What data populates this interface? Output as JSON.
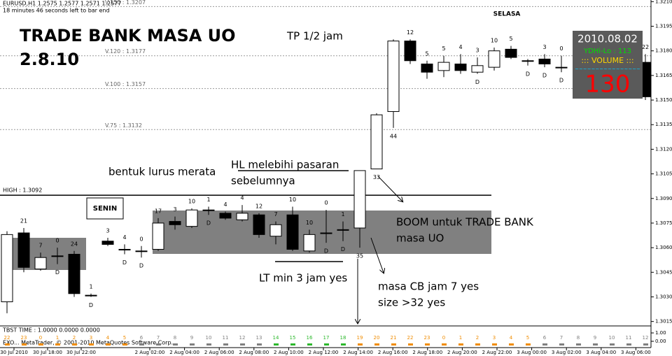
{
  "header": {
    "symbol": "EURUSD,H1  1.2575 1.2577 1.2571 1.2577",
    "timer": "18 minutes 46 seconds left to bar end"
  },
  "chart_data": {
    "type": "candlestick",
    "open": [
      1.3027,
      1.3069,
      1.3047,
      1.3055,
      1.3056,
      1.3031,
      1.3064,
      1.3059,
      1.3058,
      1.3059,
      1.3076,
      1.3073,
      1.3083,
      1.3081,
      1.3077,
      1.308,
      1.3067,
      1.308,
      1.3058,
      1.3069,
      1.3071,
      1.3072,
      1.3108,
      1.3143,
      1.3186,
      1.3172,
      1.3168,
      1.3172,
      1.3167,
      1.317,
      1.3181,
      1.3174,
      1.3175,
      1.317,
      null,
      null,
      null,
      null,
      1.3173
    ],
    "high": [
      1.307,
      1.3072,
      1.3057,
      1.306,
      1.3058,
      1.3032,
      1.3066,
      1.3062,
      1.3061,
      1.3078,
      1.3079,
      1.3084,
      1.3085,
      1.3082,
      1.3086,
      1.3081,
      1.3076,
      1.3085,
      1.3071,
      1.3083,
      1.3076,
      1.3107,
      1.3142,
      1.3187,
      1.3187,
      1.3174,
      1.3177,
      1.3178,
      1.3176,
      1.3182,
      1.3183,
      1.3175,
      1.3178,
      1.3177,
      null,
      null,
      null,
      null,
      1.3178
    ],
    "low": [
      1.302,
      1.3045,
      1.3046,
      1.305,
      1.303,
      1.303,
      1.3061,
      1.3056,
      1.3054,
      1.3058,
      1.3071,
      1.3072,
      1.308,
      1.3077,
      1.3076,
      1.3066,
      1.3062,
      1.3058,
      1.3057,
      1.3063,
      1.3064,
      1.306,
      1.3108,
      1.3133,
      1.3172,
      1.3163,
      1.3164,
      1.3166,
      1.3166,
      1.3168,
      1.3175,
      1.3171,
      1.317,
      1.3167,
      null,
      null,
      null,
      null,
      1.315
    ],
    "close": [
      1.3068,
      1.3048,
      1.3054,
      1.3055,
      1.3032,
      1.3031,
      1.3062,
      1.3059,
      1.3058,
      1.3075,
      1.3074,
      1.3083,
      1.3083,
      1.3078,
      1.3081,
      1.3068,
      1.3074,
      1.3059,
      1.3068,
      1.3069,
      1.3071,
      1.3107,
      1.3141,
      1.3186,
      1.3174,
      1.3167,
      1.3173,
      1.3168,
      1.3171,
      1.318,
      1.3176,
      1.3174,
      1.3172,
      1.317,
      null,
      null,
      null,
      null,
      1.3152
    ],
    "counts": [
      null,
      21,
      7,
      0,
      24,
      1,
      3,
      4,
      0,
      17,
      3,
      10,
      1,
      4,
      4,
      12,
      7,
      10,
      10,
      0,
      1,
      null,
      null,
      null,
      12,
      5,
      5,
      4,
      3,
      10,
      5,
      null,
      3,
      0,
      null,
      null,
      null,
      null,
      22
    ],
    "bottom_labels": [
      null,
      null,
      null,
      "D",
      null,
      "D",
      null,
      "D",
      "D",
      null,
      null,
      null,
      "D",
      null,
      null,
      null,
      null,
      null,
      null,
      "D",
      "D",
      35,
      33,
      44,
      null,
      null,
      null,
      null,
      "D",
      null,
      null,
      "D",
      "D",
      "D",
      null,
      null,
      null,
      null,
      null
    ],
    "up_color": "#ffffff",
    "down_color": "#000000",
    "ylim": [
      1.3014,
      1.3211
    ],
    "yticks": [
      {
        "value": 1.321,
        "label": "1.3210"
      },
      {
        "value": 1.3195,
        "label": "1.3195"
      },
      {
        "value": 1.318,
        "label": "1.3180"
      },
      {
        "value": 1.3165,
        "label": "1.3165"
      },
      {
        "value": 1.315,
        "label": "1.3150"
      },
      {
        "value": 1.3135,
        "label": "1.3135"
      },
      {
        "value": 1.312,
        "label": "1.3120"
      },
      {
        "value": 1.3105,
        "label": "1.3105"
      },
      {
        "value": 1.309,
        "label": "1.3090"
      },
      {
        "value": 1.3075,
        "label": "1.3075"
      },
      {
        "value": 1.306,
        "label": "1.3060"
      },
      {
        "value": 1.3045,
        "label": "1.3045"
      },
      {
        "value": 1.303,
        "label": "1.3030"
      },
      {
        "value": 1.3015,
        "label": "1.3015"
      }
    ],
    "levels": [
      {
        "label": "V.150 : 1.3207",
        "value": 1.3207
      },
      {
        "label": "V.120 : 1.3177",
        "value": 1.3177
      },
      {
        "label": "V.100 : 1.3157",
        "value": 1.3157
      },
      {
        "label": "V.75 : 1.3132",
        "value": 1.3132
      }
    ],
    "high_level": {
      "label": "HIGH : 1.3092",
      "value": 1.3092
    },
    "x_labels": [
      "30 Jul 2010",
      "30 Jul 18:00",
      "30 Jul 22:00",
      "2 Aug 02:00",
      "2 Aug 04:00",
      "2 Aug 06:00",
      "2 Aug 08:00",
      "2 Aug 10:00",
      "2 Aug 12:00",
      "2 Aug 14:00",
      "2 Aug 16:00",
      "2 Aug 18:00",
      "2 Aug 20:00",
      "2 Aug 22:00",
      "3 Aug 00:00",
      "3 Aug 02:00",
      "3 Aug 04:00",
      "3 Aug 06:00"
    ]
  },
  "days": {
    "monday": "SENIN",
    "tuesday": "SELASA"
  },
  "annotations": {
    "title_line1": "TRADE BANK MASA UO",
    "title_line2": "2.8.10",
    "tp": "TP 1/2 jam",
    "flat": "bentuk lurus merata",
    "hl_line1": "HL melebihi pasaran",
    "hl_line2": "sebelumnya",
    "boom_line1": "BOOM untuk TRADE BANK",
    "boom_line2": "masa UO",
    "lt": "LT min 3 jam yes",
    "cb_line1": "masa CB jam 7 yes",
    "cb_line2": "size >32 yes"
  },
  "info_box": {
    "date": "2010.08.02",
    "range": "YDHi-Lo : 113",
    "volume_title": "::: VOLUME :::",
    "wave": "~~~~~~~~~~~~~~~~",
    "volume": "130"
  },
  "indicator": {
    "title": "TBST TIME : 1.0000 0.0000 0.0000",
    "hours": [
      22,
      23,
      0,
      1,
      2,
      3,
      4,
      5,
      6,
      7,
      8,
      9,
      10,
      11,
      12,
      13,
      14,
      15,
      16,
      17,
      18,
      19,
      20,
      21,
      22,
      23,
      0,
      1,
      2,
      3,
      4,
      5,
      6,
      7,
      8,
      9,
      10,
      11,
      12
    ],
    "hour_colors": [
      "#f08c00",
      "#f08c00",
      "#f08c00",
      "#f08c00",
      "#f08c00",
      "#f08c00",
      "#f08c00",
      "#f08c00",
      "#808080",
      "#808080",
      "#808080",
      "#808080",
      "#808080",
      "#808080",
      "#808080",
      "#808080",
      "#2db82d",
      "#2db82d",
      "#2db82d",
      "#2db82d",
      "#2db82d",
      "#f08c00",
      "#f08c00",
      "#f08c00",
      "#f08c00",
      "#f08c00",
      "#f08c00",
      "#f08c00",
      "#f08c00",
      "#f08c00",
      "#f08c00",
      "#f08c00",
      "#808080",
      "#808080",
      "#808080",
      "#808080",
      "#808080",
      "#808080",
      "#808080"
    ],
    "yticks": [
      {
        "value": 1,
        "label": "1.00"
      },
      {
        "value": 0,
        "label": "0.00"
      }
    ]
  },
  "copyright": "EXO... MetaTrader, © 2001-2010 MetaQuotes Software Corp."
}
